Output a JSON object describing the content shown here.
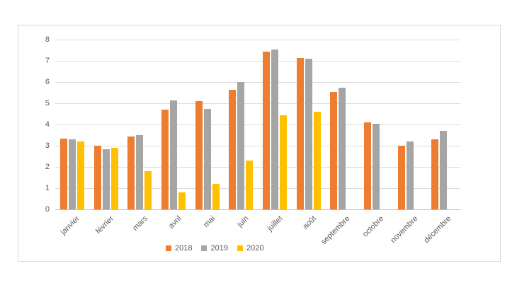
{
  "chart_data": {
    "type": "bar",
    "title": "",
    "xlabel": "",
    "ylabel": "",
    "categories": [
      "janvier",
      "février",
      "mars",
      "avril",
      "mai",
      "juin",
      "juillet",
      "août",
      "septembre",
      "octobre",
      "novembre",
      "décembre"
    ],
    "series": [
      {
        "name": "2018",
        "color": "#ED7D31",
        "values": [
          3.35,
          3.0,
          3.45,
          4.7,
          5.1,
          5.65,
          7.45,
          7.15,
          5.55,
          4.1,
          3.0,
          3.3
        ]
      },
      {
        "name": "2019",
        "color": "#A5A5A5",
        "values": [
          3.3,
          2.85,
          3.5,
          5.15,
          4.75,
          6.0,
          7.55,
          7.1,
          5.75,
          4.05,
          3.2,
          3.7
        ]
      },
      {
        "name": "2020",
        "color": "#FFC000",
        "values": [
          3.2,
          2.9,
          1.8,
          0.8,
          1.2,
          2.3,
          4.45,
          4.6,
          null,
          null,
          null,
          null
        ]
      }
    ],
    "ylim": [
      0,
      8
    ],
    "ytick_step": 1,
    "ytick_labels": [
      "0",
      "1",
      "2",
      "3",
      "4",
      "5",
      "6",
      "7",
      "8"
    ],
    "grid": true,
    "legend_position": "bottom-center",
    "colors": {
      "gridline": "#dcdcdc",
      "axis_line": "#bfbfbf",
      "frame_border": "#d9d9d9",
      "tick_text": "#595959",
      "background": "#ffffff"
    }
  }
}
